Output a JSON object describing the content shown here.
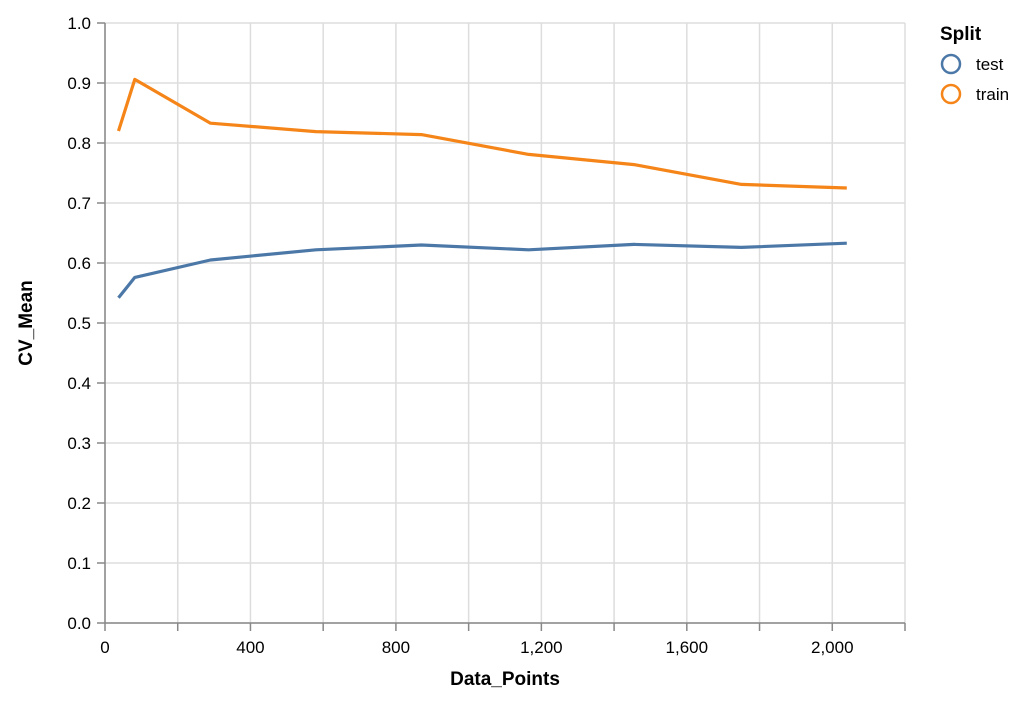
{
  "chart_data": {
    "type": "line",
    "xlabel": "Data_Points",
    "ylabel": "CV_Mean",
    "xlim": [
      0,
      2200
    ],
    "ylim": [
      0,
      1.0
    ],
    "x_ticks": [
      0,
      400,
      800,
      1200,
      1600,
      2000
    ],
    "x_tick_labels": [
      "0",
      "400",
      "800",
      "1,200",
      "1,600",
      "2,000"
    ],
    "x_minor_ticks": [
      200,
      600,
      1000,
      1400,
      1800,
      2200
    ],
    "y_ticks": [
      0.0,
      0.1,
      0.2,
      0.3,
      0.4,
      0.5,
      0.6,
      0.7,
      0.8,
      0.9,
      1.0
    ],
    "y_tick_labels": [
      "0.0",
      "0.1",
      "0.2",
      "0.3",
      "0.4",
      "0.5",
      "0.6",
      "0.7",
      "0.8",
      "0.9",
      "1.0"
    ],
    "grid": true,
    "legend": {
      "title": "Split",
      "placement": "right"
    },
    "series": [
      {
        "name": "test",
        "color": "#4c78a8",
        "x": [
          37,
          82,
          290,
          580,
          870,
          1165,
          1455,
          1750,
          2040
        ],
        "values": [
          0.542,
          0.576,
          0.605,
          0.622,
          0.63,
          0.622,
          0.631,
          0.626,
          0.633
        ]
      },
      {
        "name": "train",
        "color": "#f58518",
        "x": [
          37,
          82,
          290,
          580,
          870,
          1165,
          1455,
          1750,
          2040
        ],
        "values": [
          0.82,
          0.906,
          0.833,
          0.819,
          0.814,
          0.781,
          0.764,
          0.731,
          0.725
        ]
      }
    ]
  }
}
